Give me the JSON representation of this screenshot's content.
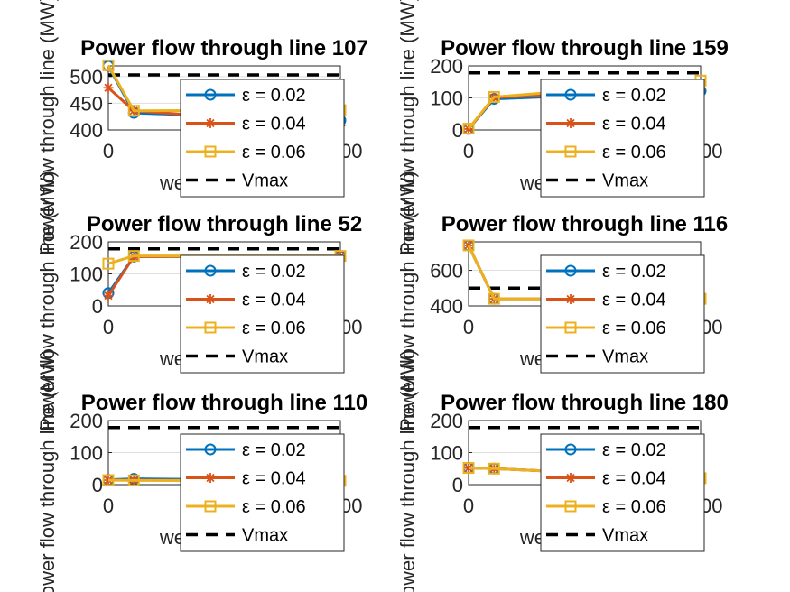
{
  "colors": {
    "series": [
      "#0072BD",
      "#D95319",
      "#EDB120"
    ],
    "threshold": "#000000",
    "axis": "#262626",
    "grid": "#DFDFDF"
  },
  "chart_data": [
    {
      "type": "line",
      "title": "Power flow through line 107",
      "xlabel": "weight factor ρ",
      "ylabel": "Power flow through line (MW)",
      "xlim": [
        0,
        1000
      ],
      "ylim": [
        400,
        520
      ],
      "xticks": [
        0,
        1000
      ],
      "xtick_labels": [
        "0",
        "1000"
      ],
      "yticks": [
        400,
        450,
        500
      ],
      "yticklabels": [
        "400",
        "450",
        "500"
      ],
      "x": [
        0,
        100,
        1000
      ],
      "series": [
        {
          "name": "ε  = 0.02",
          "marker": "circle",
          "values": [
            520,
            432,
            418
          ]
        },
        {
          "name": "ε  = 0.04",
          "marker": "asterisk",
          "values": [
            479,
            436,
            408
          ]
        },
        {
          "name": "ε  = 0.06",
          "marker": "square",
          "values": [
            521,
            436,
            437
          ]
        }
      ],
      "threshold": {
        "name": "Vmax",
        "value": 503
      },
      "legend": "inside-right"
    },
    {
      "type": "line",
      "title": "Power flow through line 159",
      "xlabel": "weight factor ρ",
      "ylabel": "Power flow through line (MW)",
      "xlim": [
        0,
        1000
      ],
      "ylim": [
        0,
        200
      ],
      "xticks": [
        0,
        1000
      ],
      "xtick_labels": [
        "0",
        "1000"
      ],
      "yticks": [
        0,
        100,
        200
      ],
      "yticklabels": [
        "0",
        "100",
        "200"
      ],
      "x": [
        0,
        100,
        1000
      ],
      "series": [
        {
          "name": "ε  = 0.02",
          "marker": "circle",
          "values": [
            3,
            97,
            122
          ]
        },
        {
          "name": "ε  = 0.04",
          "marker": "asterisk",
          "values": [
            3,
            101,
            128
          ]
        },
        {
          "name": "ε  = 0.06",
          "marker": "square",
          "values": [
            4,
            103,
            154
          ]
        }
      ],
      "threshold": {
        "name": "Vmax",
        "value": 178
      },
      "legend": "inside-right"
    },
    {
      "type": "line",
      "title": "Power flow through line 52",
      "xlabel": "weight factor ρ",
      "ylabel": "Power flow through line (MW)",
      "xlim": [
        0,
        1000
      ],
      "ylim": [
        0,
        200
      ],
      "xticks": [
        0,
        1000
      ],
      "xtick_labels": [
        "0",
        "1000"
      ],
      "yticks": [
        0,
        100,
        200
      ],
      "yticklabels": [
        "0",
        "100",
        "200"
      ],
      "x": [
        0,
        100,
        1000
      ],
      "series": [
        {
          "name": "ε  = 0.02",
          "marker": "circle",
          "values": [
            40,
            154,
            155
          ]
        },
        {
          "name": "ε  = 0.04",
          "marker": "asterisk",
          "values": [
            32,
            154,
            155
          ]
        },
        {
          "name": "ε  = 0.06",
          "marker": "square",
          "values": [
            132,
            156,
            156
          ]
        }
      ],
      "threshold": {
        "name": "Vmax",
        "value": 178
      },
      "legend": "inside-right"
    },
    {
      "type": "line",
      "title": "Power flow through line 116",
      "xlabel": "weight factor ρ",
      "ylabel": "Power flow through line (MW)",
      "xlim": [
        0,
        1000
      ],
      "ylim": [
        400,
        760
      ],
      "xticks": [
        0,
        1000
      ],
      "xtick_labels": [
        "0",
        "1000"
      ],
      "yticks": [
        400,
        600
      ],
      "yticklabels": [
        "400",
        "600"
      ],
      "x": [
        0,
        100,
        1000
      ],
      "series": [
        {
          "name": "ε  = 0.02",
          "marker": "circle",
          "values": [
            740,
            440,
            440
          ]
        },
        {
          "name": "ε  = 0.04",
          "marker": "asterisk",
          "values": [
            740,
            440,
            440
          ]
        },
        {
          "name": "ε  = 0.06",
          "marker": "square",
          "values": [
            740,
            440,
            440
          ]
        }
      ],
      "threshold": {
        "name": "Vmax",
        "value": 500
      },
      "legend": "inside-right"
    },
    {
      "type": "line",
      "title": "Power flow through line 110",
      "xlabel": "weight factor ρ",
      "ylabel": "Power flow through line (MW)",
      "xlim": [
        0,
        1000
      ],
      "ylim": [
        0,
        200
      ],
      "xticks": [
        0,
        1000
      ],
      "xtick_labels": [
        "0",
        "1000"
      ],
      "yticks": [
        0,
        100,
        200
      ],
      "yticklabels": [
        "0",
        "100",
        "200"
      ],
      "x": [
        0,
        100,
        1000
      ],
      "series": [
        {
          "name": "ε  = 0.02",
          "marker": "circle",
          "values": [
            15,
            18,
            12
          ]
        },
        {
          "name": "ε  = 0.04",
          "marker": "asterisk",
          "values": [
            14,
            14,
            12
          ]
        },
        {
          "name": "ε  = 0.06",
          "marker": "square",
          "values": [
            14,
            13,
            12
          ]
        }
      ],
      "threshold": {
        "name": "Vmax",
        "value": 178
      },
      "legend": "inside-right"
    },
    {
      "type": "line",
      "title": "Power flow through line 180",
      "xlabel": "weight factor ρ",
      "ylabel": "Power flow through line (MW)",
      "xlim": [
        0,
        1000
      ],
      "ylim": [
        0,
        200
      ],
      "xticks": [
        0,
        1000
      ],
      "xtick_labels": [
        "0",
        "1000"
      ],
      "yticks": [
        0,
        100,
        200
      ],
      "yticklabels": [
        "0",
        "100",
        "200"
      ],
      "x": [
        0,
        100,
        1000
      ],
      "series": [
        {
          "name": "ε  = 0.02",
          "marker": "circle",
          "values": [
            52,
            50,
            20
          ]
        },
        {
          "name": "ε  = 0.04",
          "marker": "asterisk",
          "values": [
            52,
            50,
            20
          ]
        },
        {
          "name": "ε  = 0.06",
          "marker": "square",
          "values": [
            52,
            50,
            20
          ]
        }
      ],
      "threshold": {
        "name": "Vmax",
        "value": 178
      },
      "legend": "inside-right"
    }
  ]
}
